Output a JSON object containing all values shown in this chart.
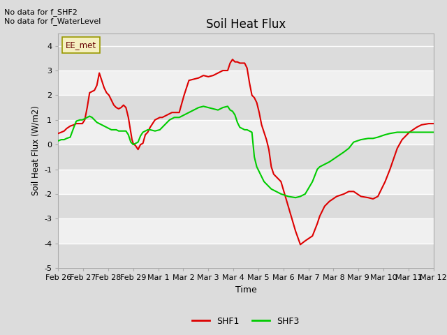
{
  "title": "Soil Heat Flux",
  "xlabel": "Time",
  "ylabel": "Soil Heat Flux (W/m2)",
  "ylim": [
    -5.0,
    4.5
  ],
  "yticks": [
    -5.0,
    -4.0,
    -3.0,
    -2.0,
    -1.0,
    0.0,
    1.0,
    2.0,
    3.0,
    4.0
  ],
  "plot_bg_color": "#dcdcdc",
  "fig_bg_color": "#dcdcdc",
  "band_color_even": "#dcdcdc",
  "band_color_odd": "#f0f0f0",
  "grid_line_color": "#ffffff",
  "text_notes": [
    "No data for f_SHF2",
    "No data for f_WaterLevel"
  ],
  "legend_label": "EE_met",
  "legend_entries": [
    "SHF1",
    "SHF3"
  ],
  "legend_colors": [
    "#dd0000",
    "#00cc00"
  ],
  "x_tick_labels": [
    "Feb 26",
    "Feb 27",
    "Feb 28",
    "Feb 29",
    "Mar 1",
    "Mar 2",
    "Mar 3",
    "Mar 4",
    "Mar 5",
    "Mar 6",
    "Mar 7",
    "Mar 8",
    "Mar 9",
    "Mar 10",
    "Mar 11",
    "Mar 12"
  ],
  "shf1_x": [
    0.0,
    0.13,
    0.25,
    0.35,
    0.5,
    0.65,
    0.75,
    0.9,
    1.0,
    1.1,
    1.2,
    1.3,
    1.4,
    1.5,
    1.6,
    1.7,
    1.8,
    1.9,
    2.0,
    2.1,
    2.2,
    2.3,
    2.4,
    2.5,
    2.6,
    2.7,
    2.75,
    2.8,
    2.9,
    3.0,
    3.05,
    3.1,
    3.2,
    3.3,
    3.4,
    3.5,
    3.6,
    3.7,
    3.8,
    4.0,
    4.2,
    4.3,
    4.4,
    4.5,
    4.6,
    4.7,
    4.8,
    5.0,
    5.2,
    5.4,
    5.6,
    5.8,
    6.0,
    6.2,
    6.4,
    6.6,
    6.8,
    7.0,
    7.1,
    7.2,
    7.3,
    7.4,
    7.5,
    7.6,
    7.7,
    7.75,
    7.8,
    7.9,
    8.0,
    8.1,
    8.2,
    8.3,
    8.4,
    8.5,
    8.6,
    8.7,
    8.8,
    8.9,
    9.0,
    9.2,
    9.5,
    9.8,
    10.0,
    10.2,
    10.5,
    10.7,
    10.8,
    10.9,
    11.0,
    11.2,
    11.5,
    11.8,
    12.0,
    12.2,
    12.5,
    12.8,
    13.0,
    13.2,
    13.5,
    13.7,
    14.0,
    14.2,
    14.5,
    14.8,
    15.0,
    15.3,
    15.5
  ],
  "shf1_y": [
    0.45,
    0.5,
    0.55,
    0.65,
    0.75,
    0.8,
    0.85,
    0.85,
    0.85,
    1.0,
    1.5,
    2.1,
    2.15,
    2.2,
    2.4,
    2.9,
    2.6,
    2.3,
    2.1,
    2.0,
    1.8,
    1.6,
    1.5,
    1.45,
    1.5,
    1.6,
    1.55,
    1.5,
    1.1,
    0.5,
    0.2,
    0.05,
    -0.05,
    -0.2,
    0.0,
    0.05,
    0.4,
    0.5,
    0.7,
    1.0,
    1.1,
    1.1,
    1.15,
    1.2,
    1.25,
    1.3,
    1.3,
    1.3,
    2.0,
    2.6,
    2.65,
    2.7,
    2.8,
    2.75,
    2.8,
    2.9,
    3.0,
    3.0,
    3.3,
    3.45,
    3.35,
    3.35,
    3.3,
    3.3,
    3.3,
    3.2,
    3.1,
    2.5,
    2.0,
    1.9,
    1.7,
    1.3,
    0.8,
    0.5,
    0.2,
    -0.2,
    -0.9,
    -1.2,
    -1.3,
    -1.5,
    -2.5,
    -3.5,
    -4.05,
    -3.9,
    -3.7,
    -3.2,
    -2.9,
    -2.7,
    -2.5,
    -2.3,
    -2.1,
    -2.0,
    -1.9,
    -1.9,
    -2.1,
    -2.15,
    -2.2,
    -2.1,
    -1.5,
    -1.0,
    -0.15,
    0.2,
    0.5,
    0.7,
    0.8,
    0.85,
    0.85
  ],
  "shf3_x": [
    0.0,
    0.13,
    0.25,
    0.35,
    0.5,
    0.65,
    0.75,
    0.9,
    1.0,
    1.1,
    1.2,
    1.3,
    1.4,
    1.5,
    1.6,
    1.7,
    1.8,
    1.9,
    2.0,
    2.1,
    2.2,
    2.3,
    2.4,
    2.5,
    2.6,
    2.7,
    2.75,
    2.8,
    2.9,
    3.0,
    3.05,
    3.1,
    3.2,
    3.3,
    3.4,
    3.5,
    3.6,
    3.7,
    3.8,
    4.0,
    4.2,
    4.3,
    4.4,
    4.5,
    4.6,
    4.7,
    4.8,
    5.0,
    5.2,
    5.4,
    5.6,
    5.8,
    6.0,
    6.2,
    6.4,
    6.6,
    6.8,
    7.0,
    7.1,
    7.2,
    7.3,
    7.4,
    7.5,
    7.6,
    7.7,
    7.75,
    7.8,
    7.9,
    8.0,
    8.1,
    8.2,
    8.3,
    8.4,
    8.5,
    8.6,
    8.7,
    8.8,
    8.9,
    9.0,
    9.2,
    9.5,
    9.8,
    10.0,
    10.2,
    10.5,
    10.7,
    10.8,
    10.9,
    11.0,
    11.2,
    11.5,
    11.8,
    12.0,
    12.2,
    12.5,
    12.8,
    13.0,
    13.2,
    13.5,
    13.7,
    14.0,
    14.2,
    14.5,
    14.8,
    15.0,
    15.3,
    15.5
  ],
  "shf3_y": [
    0.15,
    0.2,
    0.2,
    0.25,
    0.3,
    0.7,
    0.95,
    1.0,
    1.0,
    1.05,
    1.1,
    1.15,
    1.1,
    1.0,
    0.9,
    0.85,
    0.8,
    0.75,
    0.7,
    0.65,
    0.6,
    0.6,
    0.6,
    0.55,
    0.55,
    0.55,
    0.55,
    0.55,
    0.4,
    0.1,
    0.05,
    0.0,
    0.05,
    0.1,
    0.35,
    0.5,
    0.55,
    0.6,
    0.6,
    0.55,
    0.6,
    0.7,
    0.8,
    0.9,
    1.0,
    1.05,
    1.1,
    1.1,
    1.2,
    1.3,
    1.4,
    1.5,
    1.55,
    1.5,
    1.45,
    1.4,
    1.5,
    1.55,
    1.4,
    1.35,
    1.2,
    0.9,
    0.7,
    0.65,
    0.6,
    0.6,
    0.6,
    0.55,
    0.5,
    -0.5,
    -0.9,
    -1.1,
    -1.3,
    -1.5,
    -1.6,
    -1.7,
    -1.8,
    -1.85,
    -1.9,
    -2.0,
    -2.1,
    -2.15,
    -2.1,
    -2.0,
    -1.5,
    -1.0,
    -0.9,
    -0.85,
    -0.8,
    -0.7,
    -0.5,
    -0.3,
    -0.15,
    0.1,
    0.2,
    0.25,
    0.25,
    0.3,
    0.4,
    0.45,
    0.5,
    0.5,
    0.5,
    0.5,
    0.5,
    0.5,
    0.5
  ]
}
